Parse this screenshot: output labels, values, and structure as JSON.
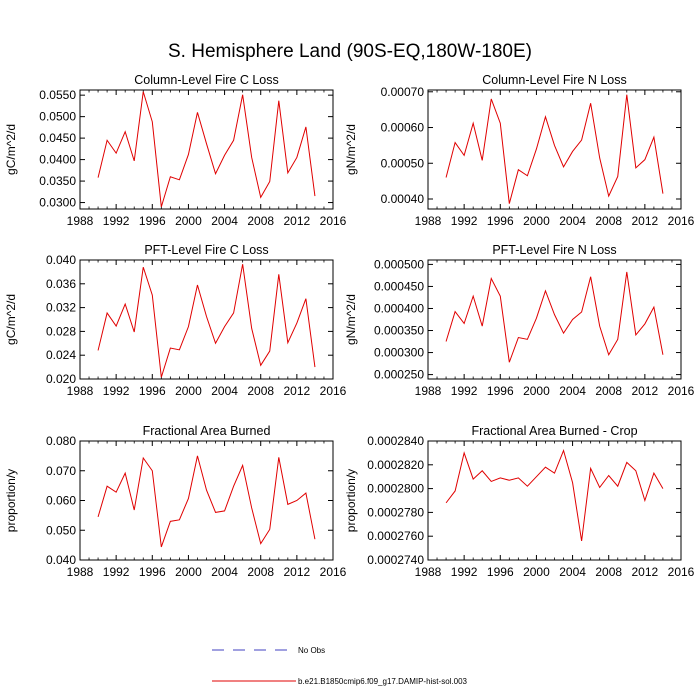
{
  "figure": {
    "title": "S. Hemisphere Land (90S-EQ,180W-180E)"
  },
  "legend": {
    "items": [
      {
        "label": "No Obs",
        "color": "#4040c0",
        "dash": true
      },
      {
        "label": "b.e21.B1850cmip6.f09_g17.DAMIP-hist-sol.003",
        "color": "#e00000",
        "dash": false
      }
    ]
  },
  "chart_data": [
    {
      "type": "line",
      "title": "Column-Level Fire C Loss",
      "ylabel": "gC/m^2/d",
      "xlim": [
        1988,
        2016
      ],
      "xticks": [
        1988,
        1992,
        1996,
        2000,
        2004,
        2008,
        2012,
        2016
      ],
      "ylim": [
        0.0285,
        0.0562
      ],
      "yticks": [
        "0.0300",
        "0.0350",
        "0.0400",
        "0.0450",
        "0.0500",
        "0.0550"
      ],
      "series": [
        {
          "color": "#e00000",
          "x": [
            1990,
            1991,
            1992,
            1993,
            1994,
            1995,
            1996,
            1997,
            1998,
            1999,
            2000,
            2001,
            2002,
            2003,
            2004,
            2005,
            2006,
            2007,
            2008,
            2009,
            2010,
            2011,
            2012,
            2013,
            2014
          ],
          "values": [
            0.0358,
            0.0445,
            0.0415,
            0.0465,
            0.0397,
            0.0558,
            0.0488,
            0.029,
            0.036,
            0.0353,
            0.0412,
            0.051,
            0.0437,
            0.0367,
            0.041,
            0.0445,
            0.0551,
            0.0405,
            0.0312,
            0.0349,
            0.0537,
            0.0369,
            0.0405,
            0.0476,
            0.0315
          ]
        }
      ]
    },
    {
      "type": "line",
      "title": "Column-Level Fire N Loss",
      "ylabel": "gN/m^2/d",
      "xlim": [
        1988,
        2016
      ],
      "xticks": [
        1988,
        1992,
        1996,
        2000,
        2004,
        2008,
        2012,
        2016
      ],
      "ylim": [
        0.000372,
        0.000705
      ],
      "yticks": [
        "0.00040",
        "0.00050",
        "0.00060",
        "0.00070"
      ],
      "series": [
        {
          "color": "#e00000",
          "x": [
            1990,
            1991,
            1992,
            1993,
            1994,
            1995,
            1996,
            1997,
            1998,
            1999,
            2000,
            2001,
            2002,
            2003,
            2004,
            2005,
            2006,
            2007,
            2008,
            2009,
            2010,
            2011,
            2012,
            2013,
            2014
          ],
          "values": [
            0.00046,
            0.000558,
            0.000522,
            0.000612,
            0.000508,
            0.00068,
            0.000612,
            0.000387,
            0.000482,
            0.000465,
            0.00054,
            0.00063,
            0.00055,
            0.00049,
            0.000533,
            0.000565,
            0.000668,
            0.000515,
            0.000408,
            0.000463,
            0.000692,
            0.000487,
            0.00051,
            0.000573,
            0.000415
          ]
        }
      ]
    },
    {
      "type": "line",
      "title": "PFT-Level Fire C Loss",
      "ylabel": "gC/m^2/d",
      "xlim": [
        1988,
        2016
      ],
      "xticks": [
        1988,
        1992,
        1996,
        2000,
        2004,
        2008,
        2012,
        2016
      ],
      "ylim": [
        0.02,
        0.04
      ],
      "yticks": [
        "0.020",
        "0.024",
        "0.028",
        "0.032",
        "0.036",
        "0.040"
      ],
      "series": [
        {
          "color": "#e00000",
          "x": [
            1990,
            1991,
            1992,
            1993,
            1994,
            1995,
            1996,
            1997,
            1998,
            1999,
            2000,
            2001,
            2002,
            2003,
            2004,
            2005,
            2006,
            2007,
            2008,
            2009,
            2010,
            2011,
            2012,
            2013,
            2014
          ],
          "values": [
            0.0248,
            0.0311,
            0.0289,
            0.0326,
            0.0279,
            0.0388,
            0.0341,
            0.0203,
            0.0252,
            0.0249,
            0.0288,
            0.0358,
            0.0305,
            0.026,
            0.0288,
            0.0311,
            0.0393,
            0.0285,
            0.0223,
            0.0247,
            0.0376,
            0.0261,
            0.0294,
            0.0335,
            0.022
          ]
        }
      ]
    },
    {
      "type": "line",
      "title": "PFT-Level Fire N Loss",
      "ylabel": "gN/m^2/d",
      "xlim": [
        1988,
        2016
      ],
      "xticks": [
        1988,
        1992,
        1996,
        2000,
        2004,
        2008,
        2012,
        2016
      ],
      "ylim": [
        0.00024,
        0.00051
      ],
      "yticks": [
        "0.000250",
        "0.000300",
        "0.000350",
        "0.000400",
        "0.000450",
        "0.000500"
      ],
      "series": [
        {
          "color": "#e00000",
          "x": [
            1990,
            1991,
            1992,
            1993,
            1994,
            1995,
            1996,
            1997,
            1998,
            1999,
            2000,
            2001,
            2002,
            2003,
            2004,
            2005,
            2006,
            2007,
            2008,
            2009,
            2010,
            2011,
            2012,
            2013,
            2014
          ],
          "values": [
            0.000325,
            0.000393,
            0.000366,
            0.000428,
            0.00036,
            0.000468,
            0.000428,
            0.000278,
            0.000334,
            0.00033,
            0.000378,
            0.00044,
            0.000386,
            0.000344,
            0.000375,
            0.000392,
            0.000472,
            0.00036,
            0.000295,
            0.00033,
            0.000483,
            0.00034,
            0.000365,
            0.000403,
            0.000295
          ]
        }
      ]
    },
    {
      "type": "line",
      "title": "Fractional Area Burned",
      "ylabel": "proportion/y",
      "xlim": [
        1988,
        2016
      ],
      "xticks": [
        1988,
        1992,
        1996,
        2000,
        2004,
        2008,
        2012,
        2016
      ],
      "ylim": [
        0.04,
        0.08
      ],
      "yticks": [
        "0.040",
        "0.050",
        "0.060",
        "0.070",
        "0.080"
      ],
      "series": [
        {
          "color": "#e00000",
          "x": [
            1990,
            1991,
            1992,
            1993,
            1994,
            1995,
            1996,
            1997,
            1998,
            1999,
            2000,
            2001,
            2002,
            2003,
            2004,
            2005,
            2006,
            2007,
            2008,
            2009,
            2010,
            2011,
            2012,
            2013,
            2014
          ],
          "values": [
            0.0545,
            0.0648,
            0.0628,
            0.0692,
            0.0568,
            0.0743,
            0.07,
            0.0444,
            0.053,
            0.0535,
            0.0607,
            0.075,
            0.0635,
            0.056,
            0.0565,
            0.0648,
            0.0718,
            0.0575,
            0.0455,
            0.0503,
            0.0745,
            0.0587,
            0.06,
            0.0625,
            0.047
          ]
        }
      ]
    },
    {
      "type": "line",
      "title": "Fractional Area Burned - Crop",
      "ylabel": "proportion/y",
      "xlim": [
        1988,
        2016
      ],
      "xticks": [
        1988,
        1992,
        1996,
        2000,
        2004,
        2008,
        2012,
        2016
      ],
      "ylim": [
        0.000274,
        0.000284
      ],
      "yticks": [
        "0.0002740",
        "0.0002760",
        "0.0002780",
        "0.0002800",
        "0.0002820",
        "0.0002840"
      ],
      "series": [
        {
          "color": "#e00000",
          "x": [
            1990,
            1991,
            1992,
            1993,
            1994,
            1995,
            1996,
            1997,
            1998,
            1999,
            2000,
            2001,
            2002,
            2003,
            2004,
            2005,
            2006,
            2007,
            2008,
            2009,
            2010,
            2011,
            2012,
            2013,
            2014
          ],
          "values": [
            0.0002788,
            0.0002798,
            0.000283,
            0.0002808,
            0.0002815,
            0.0002806,
            0.0002809,
            0.0002807,
            0.0002809,
            0.0002802,
            0.000281,
            0.0002818,
            0.0002813,
            0.0002832,
            0.0002805,
            0.0002756,
            0.0002817,
            0.0002801,
            0.0002811,
            0.0002802,
            0.0002822,
            0.0002815,
            0.000279,
            0.0002813,
            0.00028
          ]
        }
      ]
    }
  ]
}
